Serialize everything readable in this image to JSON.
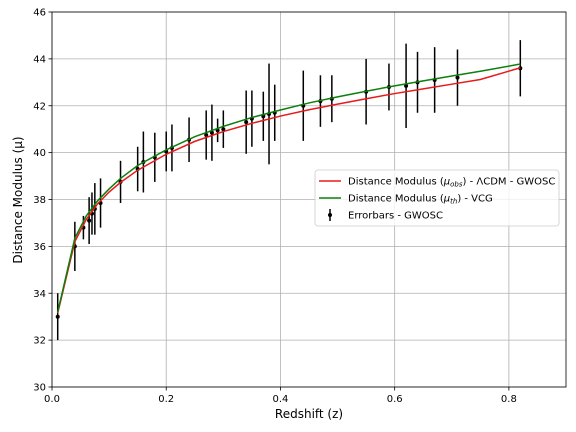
{
  "chart_data": {
    "type": "line",
    "xlabel": "Redshift (z)",
    "ylabel": "Distance Modulus (μ)",
    "xlim": [
      0,
      0.9
    ],
    "ylim": [
      30,
      46
    ],
    "xticks": [
      0.0,
      0.2,
      0.4,
      0.6,
      0.8
    ],
    "xtick_labels": [
      "0.0",
      "0.2",
      "0.4",
      "0.6",
      "0.8"
    ],
    "yticks": [
      30,
      32,
      34,
      36,
      38,
      40,
      42,
      44,
      46
    ],
    "ytick_labels": [
      "30",
      "32",
      "34",
      "36",
      "38",
      "40",
      "42",
      "44",
      "46"
    ],
    "grid": true,
    "legend_position": "center-right",
    "series": [
      {
        "name": "Distance Modulus (μ_obs) - ΛCDM - GWOSC",
        "legend": {
          "pre": "Distance Modulus (",
          "sym": "μ",
          "sub": "obs",
          "post": ") - ΛCDM - GWOSC"
        },
        "kind": "line",
        "color": "#e8191a",
        "x": [
          0.01,
          0.04,
          0.06,
          0.08,
          0.1,
          0.12,
          0.15,
          0.2,
          0.25,
          0.3,
          0.35,
          0.4,
          0.45,
          0.5,
          0.55,
          0.6,
          0.65,
          0.7,
          0.75,
          0.82
        ],
        "y": [
          33.15,
          36.2,
          37.15,
          37.82,
          38.32,
          38.73,
          39.25,
          39.93,
          40.48,
          40.9,
          41.25,
          41.56,
          41.83,
          42.07,
          42.3,
          42.52,
          42.72,
          42.92,
          43.12,
          43.62
        ]
      },
      {
        "name": "Distance Modulus (μ_th) - VCG",
        "legend": {
          "pre": "Distance Modulus (",
          "sym": "μ",
          "sub": "th",
          "post": ") - VCG"
        },
        "kind": "line",
        "color": "#0d7f0d",
        "x": [
          0.01,
          0.04,
          0.06,
          0.08,
          0.1,
          0.12,
          0.15,
          0.2,
          0.25,
          0.3,
          0.35,
          0.4,
          0.45,
          0.5,
          0.55,
          0.6,
          0.65,
          0.7,
          0.75,
          0.82
        ],
        "y": [
          33.2,
          36.35,
          37.3,
          37.95,
          38.45,
          38.9,
          39.45,
          40.12,
          40.68,
          41.12,
          41.5,
          41.82,
          42.12,
          42.38,
          42.62,
          42.85,
          43.06,
          43.27,
          43.47,
          43.78
        ]
      },
      {
        "name": "Errorbars - GWOSC",
        "legend": {
          "pre": "Errorbars - GWOSC",
          "sym": "",
          "sub": "",
          "post": ""
        },
        "kind": "errorbar",
        "color": "#000000",
        "x": [
          0.01,
          0.04,
          0.055,
          0.065,
          0.07,
          0.075,
          0.085,
          0.12,
          0.15,
          0.16,
          0.18,
          0.2,
          0.21,
          0.24,
          0.27,
          0.28,
          0.29,
          0.3,
          0.34,
          0.35,
          0.37,
          0.38,
          0.39,
          0.44,
          0.47,
          0.49,
          0.55,
          0.59,
          0.62,
          0.64,
          0.67,
          0.71,
          0.82
        ],
        "y": [
          33.0,
          36.0,
          36.8,
          37.1,
          37.4,
          37.6,
          37.85,
          38.75,
          39.3,
          39.6,
          39.8,
          40.05,
          40.2,
          40.55,
          40.75,
          40.85,
          40.95,
          41.0,
          41.3,
          41.45,
          41.55,
          41.65,
          41.7,
          42.0,
          42.2,
          42.3,
          42.6,
          42.8,
          42.85,
          43.0,
          43.1,
          43.2,
          43.6
        ],
        "yerr": [
          1.0,
          1.05,
          0.5,
          1.0,
          0.9,
          1.1,
          1.05,
          0.9,
          0.95,
          1.3,
          1.05,
          0.85,
          1.0,
          0.95,
          1.05,
          1.2,
          0.5,
          0.8,
          1.35,
          1.2,
          1.05,
          2.15,
          1.2,
          1.5,
          1.1,
          1.0,
          1.4,
          1.0,
          1.8,
          1.3,
          1.4,
          1.2,
          1.2
        ]
      }
    ]
  }
}
